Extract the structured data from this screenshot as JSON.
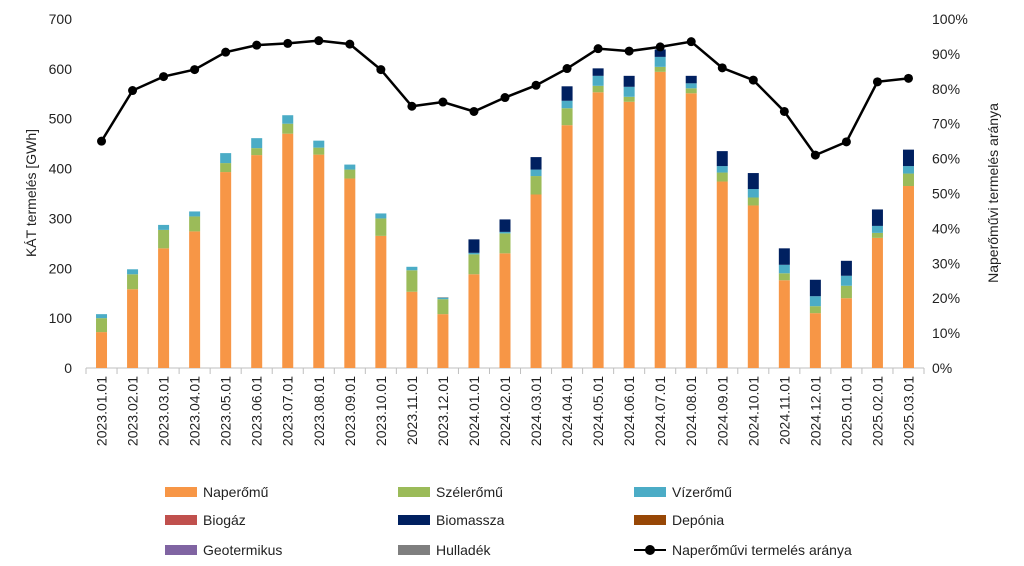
{
  "chart_data": {
    "type": "bar",
    "stacked": true,
    "ylabel_left": "KÁT termelés [GWh]",
    "ylabel_right": "Naperőművi termelés aránya",
    "ylim_left": [
      0,
      700
    ],
    "ylim_right": [
      0,
      100
    ],
    "yticks_left": [
      "0",
      "100",
      "200",
      "300",
      "400",
      "500",
      "600",
      "700"
    ],
    "yticks_right": [
      "0%",
      "10%",
      "20%",
      "30%",
      "40%",
      "50%",
      "60%",
      "70%",
      "80%",
      "90%",
      "100%"
    ],
    "categories": [
      "2023.01.01",
      "2023.02.01",
      "2023.03.01",
      "2023.04.01",
      "2023.05.01",
      "2023.06.01",
      "2023.07.01",
      "2023.08.01",
      "2023.09.01",
      "2023.10.01",
      "2023.11.01",
      "2023.12.01",
      "2024.01.01",
      "2024.02.01",
      "2024.03.01",
      "2024.04.01",
      "2024.05.01",
      "2024.06.01",
      "2024.07.01",
      "2024.08.01",
      "2024.09.01",
      "2024.10.01",
      "2024.11.01",
      "2024.12.01",
      "2025.01.01",
      "2025.02.01",
      "2025.03.01"
    ],
    "series": [
      {
        "name": "Naperőmű",
        "color": "#f79646",
        "values": [
          72,
          158,
          240,
          274,
          393,
          427,
          470,
          428,
          380,
          265,
          153,
          108,
          188,
          230,
          348,
          487,
          553,
          534,
          594,
          551,
          374,
          326,
          176,
          110,
          140,
          261,
          365
        ]
      },
      {
        "name": "Szélerőmű",
        "color": "#9bbb59",
        "values": [
          28,
          30,
          37,
          30,
          18,
          14,
          20,
          14,
          18,
          35,
          43,
          30,
          40,
          40,
          37,
          34,
          13,
          10,
          10,
          10,
          18,
          16,
          14,
          14,
          25,
          10,
          25
        ]
      },
      {
        "name": "Vízerőmű",
        "color": "#4bacc6",
        "values": [
          8,
          10,
          10,
          10,
          20,
          20,
          17,
          14,
          10,
          10,
          7,
          3,
          3,
          3,
          13,
          15,
          20,
          20,
          20,
          10,
          13,
          17,
          17,
          20,
          20,
          14,
          15
        ]
      },
      {
        "name": "Biogáz",
        "color": "#c0504d",
        "values": [
          0,
          0,
          0,
          0,
          0,
          0,
          0,
          0,
          0,
          0,
          0,
          0,
          0,
          0,
          0,
          0,
          0,
          0,
          0,
          0,
          0,
          0,
          0,
          0,
          0,
          0,
          0
        ]
      },
      {
        "name": "Biomassza",
        "color": "#002060",
        "values": [
          0,
          0,
          0,
          0,
          0,
          0,
          0,
          0,
          0,
          0,
          0,
          0,
          27,
          25,
          25,
          29,
          15,
          22,
          15,
          15,
          30,
          32,
          33,
          33,
          30,
          33,
          33
        ]
      },
      {
        "name": "Depónia",
        "color": "#974706",
        "values": [
          0,
          0,
          0,
          0,
          0,
          0,
          0,
          0,
          0,
          0,
          0,
          0,
          0,
          0,
          0,
          0,
          0,
          0,
          0,
          0,
          0,
          0,
          0,
          0,
          0,
          0,
          0
        ]
      },
      {
        "name": "Geotermikus",
        "color": "#8064a2",
        "values": [
          0,
          0,
          0,
          0,
          0,
          0,
          0,
          0,
          0,
          0,
          0,
          0,
          0,
          0,
          0,
          0,
          0,
          0,
          0,
          0,
          0,
          0,
          0,
          0,
          0,
          0,
          0
        ]
      },
      {
        "name": "Hulladék",
        "color": "#7f7f7f",
        "values": [
          0,
          0,
          0,
          0,
          0,
          0,
          0,
          0,
          0,
          0,
          0,
          1,
          0,
          0,
          0,
          0,
          0,
          0,
          0,
          0,
          0,
          0,
          0,
          0,
          0,
          0,
          0
        ]
      }
    ],
    "line_series": {
      "name": "Naperőművi termelés aránya",
      "color": "#000000",
      "axis": "right",
      "values": [
        65,
        79.5,
        83.5,
        85.5,
        90.5,
        92.5,
        93,
        93.8,
        92.8,
        85.5,
        75,
        76.2,
        73.5,
        77.5,
        81,
        85.8,
        91.5,
        90.8,
        92,
        93.5,
        86,
        82.5,
        73.5,
        61,
        64.8,
        82,
        83
      ]
    },
    "legend": [
      {
        "label": "Naperőmű",
        "kind": "bar",
        "color": "#f79646"
      },
      {
        "label": "Szélerőmű",
        "kind": "bar",
        "color": "#9bbb59"
      },
      {
        "label": "Vízerőmű",
        "kind": "bar",
        "color": "#4bacc6"
      },
      {
        "label": "Biogáz",
        "kind": "bar",
        "color": "#c0504d"
      },
      {
        "label": "Biomassza",
        "kind": "bar",
        "color": "#002060"
      },
      {
        "label": "Depónia",
        "kind": "bar",
        "color": "#974706"
      },
      {
        "label": "Geotermikus",
        "kind": "bar",
        "color": "#8064a2"
      },
      {
        "label": "Hulladék",
        "kind": "bar",
        "color": "#7f7f7f"
      },
      {
        "label": "Naperőművi termelés aránya",
        "kind": "line",
        "color": "#000000"
      }
    ],
    "legend_position": "bottom",
    "grid": false
  }
}
